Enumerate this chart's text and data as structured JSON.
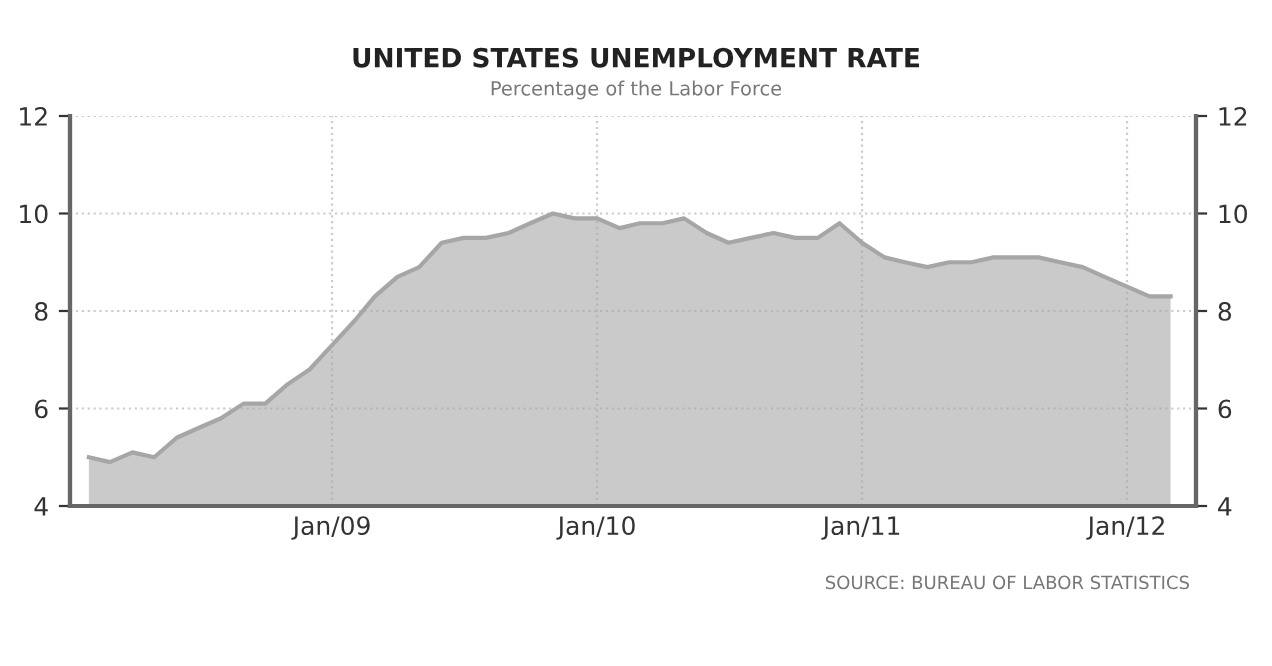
{
  "chart_data": {
    "type": "area",
    "title": "UNITED STATES UNEMPLOYMENT RATE",
    "subtitle": "Percentage of the Labor Force",
    "annotations": [
      "SOURCE: BUREAU OF LABOR STATISTICS"
    ],
    "x": [
      "2008-02",
      "2008-03",
      "2008-04",
      "2008-05",
      "2008-06",
      "2008-07",
      "2008-08",
      "2008-09",
      "2008-10",
      "2008-11",
      "2008-12",
      "2009-01",
      "2009-02",
      "2009-03",
      "2009-04",
      "2009-05",
      "2009-06",
      "2009-07",
      "2009-08",
      "2009-09",
      "2009-10",
      "2009-11",
      "2009-12",
      "2010-01",
      "2010-02",
      "2010-03",
      "2010-04",
      "2010-05",
      "2010-06",
      "2010-07",
      "2010-08",
      "2010-09",
      "2010-10",
      "2010-11",
      "2010-12",
      "2011-01",
      "2011-02",
      "2011-03",
      "2011-04",
      "2011-05",
      "2011-06",
      "2011-07",
      "2011-08",
      "2011-09",
      "2011-10",
      "2011-11",
      "2011-12",
      "2012-01",
      "2012-02",
      "2012-03"
    ],
    "series": [
      {
        "color": "#a6a6a6",
        "values": [
          5.0,
          4.9,
          5.1,
          5.0,
          5.4,
          5.6,
          5.8,
          6.1,
          6.1,
          6.5,
          6.8,
          7.3,
          7.8,
          8.3,
          8.7,
          8.9,
          9.4,
          9.5,
          9.5,
          9.6,
          9.8,
          10.0,
          9.9,
          9.9,
          9.7,
          9.8,
          9.8,
          9.9,
          9.6,
          9.4,
          9.5,
          9.6,
          9.5,
          9.5,
          9.8,
          9.4,
          9.1,
          9.0,
          8.9,
          9.0,
          9.0,
          9.1,
          9.1,
          9.1,
          9.0,
          8.9,
          8.7,
          8.5,
          8.3,
          8.3
        ]
      }
    ],
    "xlim": [
      "2008-01-06",
      "2012-04-05"
    ],
    "xticks": [
      {
        "value": "2009-01",
        "label": "Jan/09"
      },
      {
        "value": "2010-01",
        "label": "Jan/10"
      },
      {
        "value": "2011-01",
        "label": "Jan/11"
      },
      {
        "value": "2012-01",
        "label": "Jan/12"
      }
    ],
    "ylim": [
      4,
      12
    ],
    "yticks": [
      4,
      6,
      8,
      10,
      12
    ],
    "y2lim": [
      4,
      12
    ],
    "y2ticks": [
      4,
      6,
      8,
      10,
      12
    ],
    "grid": true
  }
}
